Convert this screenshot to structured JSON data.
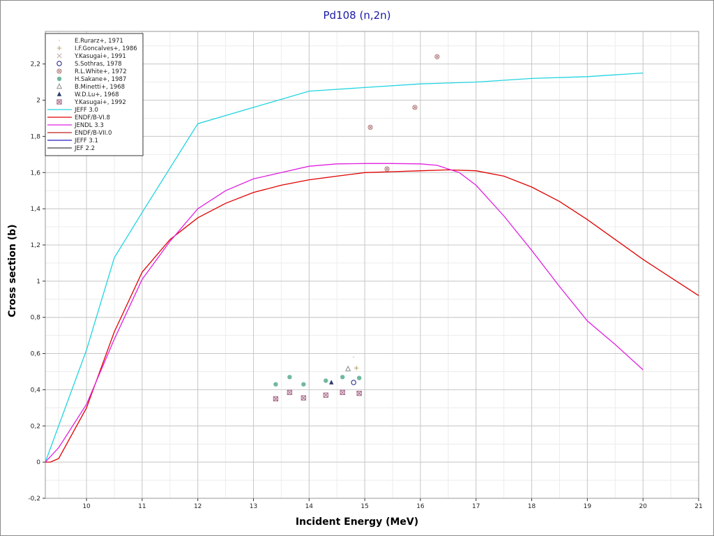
{
  "chart_data": {
    "type": "scatter",
    "title": "Pd108 (n,2n)",
    "xlabel": "Incident Energy (MeV)",
    "ylabel": "Cross section (b)",
    "xlim": [
      9.26,
      21
    ],
    "ylim": [
      -0.2,
      2.38
    ],
    "grid": true,
    "legend_position": "top-left",
    "x_ticks": [
      {
        "value": 10,
        "label": "10"
      },
      {
        "value": 11,
        "label": "11"
      },
      {
        "value": 12,
        "label": "12"
      },
      {
        "value": 13,
        "label": "13"
      },
      {
        "value": 14,
        "label": "14"
      },
      {
        "value": 15,
        "label": "15"
      },
      {
        "value": 16,
        "label": "16"
      },
      {
        "value": 17,
        "label": "17"
      },
      {
        "value": 18,
        "label": "18"
      },
      {
        "value": 19,
        "label": "19"
      },
      {
        "value": 20,
        "label": "20"
      },
      {
        "value": 21,
        "label": "21"
      }
    ],
    "y_ticks": [
      {
        "value": -0.2,
        "label": "-0,2"
      },
      {
        "value": 0,
        "label": "0"
      },
      {
        "value": 0.2,
        "label": "0,2"
      },
      {
        "value": 0.4,
        "label": "0,4"
      },
      {
        "value": 0.6,
        "label": "0,6"
      },
      {
        "value": 0.8,
        "label": "0,8"
      },
      {
        "value": 1,
        "label": "1"
      },
      {
        "value": 1.2,
        "label": "1,2"
      },
      {
        "value": 1.4,
        "label": "1,4"
      },
      {
        "value": 1.6,
        "label": "1,6"
      },
      {
        "value": 1.8,
        "label": "1,8"
      },
      {
        "value": 2,
        "label": "2"
      },
      {
        "value": 2.2,
        "label": "2,2"
      }
    ],
    "experiments": [
      {
        "name": "E.Rurarz+, 1971",
        "marker": "dot",
        "color": "#e0c8a0",
        "points": [
          [
            14.8,
            0.58
          ]
        ]
      },
      {
        "name": "I.F.Goncalves+, 1986",
        "marker": "plus",
        "color": "#b8a070",
        "points": [
          [
            14.85,
            0.52
          ]
        ]
      },
      {
        "name": "Y.Kasugai+, 1991",
        "marker": "x",
        "color": "#c0a0a0",
        "points": []
      },
      {
        "name": "S.Sothras, 1978",
        "marker": "circle-open",
        "color": "#1a1a8a",
        "points": [
          [
            14.8,
            0.44
          ]
        ]
      },
      {
        "name": "R.L.White+, 1972",
        "marker": "circle-x",
        "color": "#b08080",
        "points": [
          [
            15.1,
            1.85
          ],
          [
            15.4,
            1.62
          ],
          [
            15.9,
            1.96
          ],
          [
            16.3,
            2.24
          ]
        ]
      },
      {
        "name": "H.Sakane+, 1987",
        "marker": "circle-filled",
        "color": "#70b8a0",
        "points": [
          [
            13.4,
            0.43
          ],
          [
            13.65,
            0.47
          ],
          [
            13.9,
            0.43
          ],
          [
            14.3,
            0.45
          ],
          [
            14.6,
            0.47
          ],
          [
            14.9,
            0.465
          ]
        ]
      },
      {
        "name": "B.Minetti+, 1968",
        "marker": "triangle-open",
        "color": "#8a8a8a",
        "points": [
          [
            14.7,
            0.515
          ]
        ]
      },
      {
        "name": "W.D.Lu+, 1968",
        "marker": "triangle-filled",
        "color": "#2a3a6a",
        "points": [
          [
            14.4,
            0.44
          ]
        ]
      },
      {
        "name": "Y.Kasugai+, 1992",
        "marker": "square-x",
        "color": "#a06080",
        "points": [
          [
            13.4,
            0.35
          ],
          [
            13.65,
            0.385
          ],
          [
            13.9,
            0.355
          ],
          [
            14.3,
            0.37
          ],
          [
            14.6,
            0.385
          ],
          [
            14.9,
            0.38
          ]
        ]
      }
    ],
    "evaluations": [
      {
        "name": "JEFF 3.0",
        "color": "#22d4e0",
        "x": [
          9.26,
          10,
          10.5,
          11,
          12,
          13,
          14,
          15,
          16,
          17,
          18,
          19,
          20
        ],
        "y": [
          0,
          0.62,
          1.13,
          1.38,
          1.87,
          1.96,
          2.05,
          2.07,
          2.09,
          2.1,
          2.12,
          2.13,
          2.15
        ]
      },
      {
        "name": "ENDF/B-VI.8",
        "color": "#e00000",
        "x": [
          9.26,
          9.35,
          9.5,
          10,
          10.5,
          11,
          11.5,
          12,
          12.5,
          13,
          13.5,
          14,
          14.5,
          15,
          15.5,
          16,
          16.5,
          17,
          17.5,
          18,
          18.5,
          19,
          19.5,
          20,
          20.5,
          21
        ],
        "y": [
          0,
          0,
          0.02,
          0.3,
          0.72,
          1.05,
          1.23,
          1.35,
          1.43,
          1.49,
          1.53,
          1.56,
          1.58,
          1.6,
          1.605,
          1.61,
          1.615,
          1.61,
          1.58,
          1.52,
          1.44,
          1.34,
          1.23,
          1.12,
          1.02,
          0.92
        ]
      },
      {
        "name": "JENDL 3.3",
        "color": "#e020e0",
        "x": [
          9.26,
          9.5,
          10,
          10.5,
          11,
          11.5,
          12,
          12.5,
          13,
          13.5,
          14,
          14.5,
          15,
          15.5,
          16,
          16.3,
          16.7,
          17,
          17.5,
          18,
          18.5,
          19,
          19.5,
          20
        ],
        "y": [
          0,
          0.08,
          0.32,
          0.68,
          1.01,
          1.22,
          1.4,
          1.5,
          1.565,
          1.6,
          1.635,
          1.648,
          1.65,
          1.65,
          1.648,
          1.64,
          1.6,
          1.53,
          1.36,
          1.17,
          0.97,
          0.78,
          0.65,
          0.51
        ]
      },
      {
        "name": "ENDF/B-VII.0",
        "color": "#c02020",
        "x": [],
        "y": []
      },
      {
        "name": "JEFF 3.1",
        "color": "#2020c0",
        "x": [],
        "y": []
      },
      {
        "name": "JEF 2.2",
        "color": "#404040",
        "x": [],
        "y": []
      }
    ]
  }
}
